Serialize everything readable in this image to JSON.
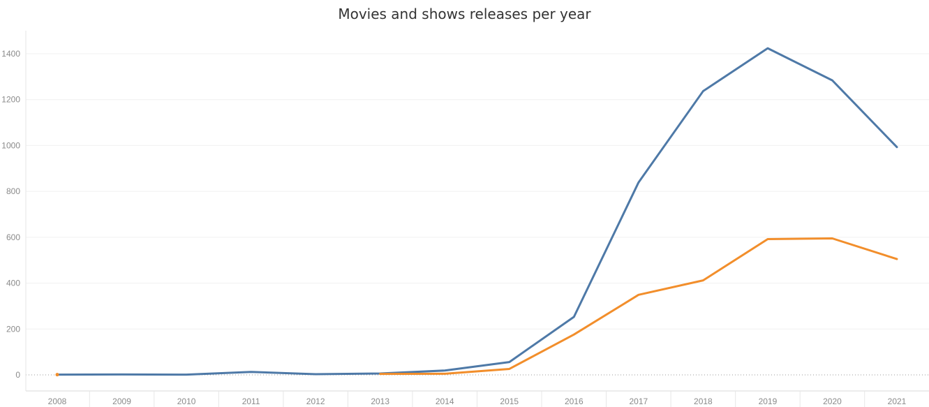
{
  "chart_data": {
    "type": "line",
    "title": "Movies and shows releases per year",
    "xlabel": "",
    "ylabel": "",
    "x": [
      "2008",
      "2009",
      "2010",
      "2011",
      "2012",
      "2013",
      "2014",
      "2015",
      "2016",
      "2017",
      "2018",
      "2019",
      "2020",
      "2021"
    ],
    "ylim": [
      0,
      1500
    ],
    "yticks": [
      0,
      200,
      400,
      600,
      800,
      1000,
      1200,
      1400
    ],
    "grid": true,
    "legend": "none",
    "series": [
      {
        "color": "#4e79a7",
        "values": [
          1,
          2,
          1,
          13,
          3,
          6,
          19,
          56,
          253,
          839,
          1237,
          1424,
          1284,
          993
        ]
      },
      {
        "color": "#f28e2b",
        "start_index": 0,
        "values": [
          1,
          null,
          null,
          null,
          null,
          4,
          5,
          26,
          176,
          349,
          412,
          592,
          595,
          505
        ]
      }
    ]
  }
}
